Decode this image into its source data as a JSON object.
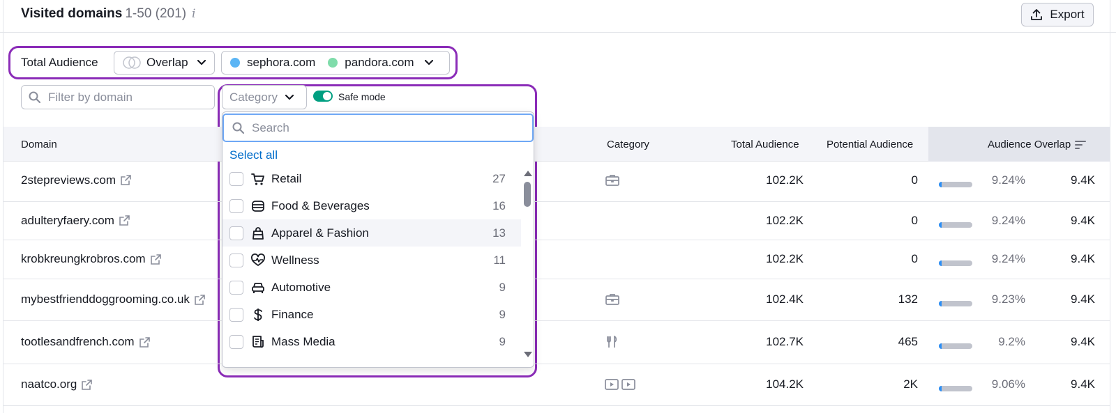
{
  "header": {
    "title": "Visited domains",
    "range": "1-50 (201)",
    "info_glyph": "i",
    "export_label": "Export"
  },
  "filters": {
    "total_audience_label": "Total Audience",
    "overlap_label": "Overlap",
    "domain1": "sephora.com",
    "domain2": "pandora.com",
    "domain1_color": "#5bb5f5",
    "domain2_color": "#7fdcaa",
    "filter_placeholder": "Filter by domain",
    "category_label": "Category",
    "safe_mode_label": "Safe mode",
    "safe_mode_on": true
  },
  "dropdown": {
    "search_placeholder": "Search",
    "select_all": "Select all",
    "options": [
      {
        "label": "Retail",
        "count": "27",
        "icon": "cart-icon"
      },
      {
        "label": "Food & Beverages",
        "count": "16",
        "icon": "burger-icon"
      },
      {
        "label": "Apparel & Fashion",
        "count": "13",
        "icon": "bag-icon"
      },
      {
        "label": "Wellness",
        "count": "11",
        "icon": "heartbeat-icon"
      },
      {
        "label": "Automotive",
        "count": "9",
        "icon": "car-icon"
      },
      {
        "label": "Finance",
        "count": "9",
        "icon": "dollar-icon"
      },
      {
        "label": "Mass Media",
        "count": "9",
        "icon": "news-icon"
      }
    ]
  },
  "table": {
    "columns": {
      "domain": "Domain",
      "category": "Category",
      "total": "Total Audience",
      "potential": "Potential Audience",
      "overlap": "Audience Overlap"
    },
    "rows": [
      {
        "domain": "2stepreviews.com",
        "category_icon": "briefcase-icon",
        "total": "102.2K",
        "potential": "0",
        "overlap_pct": "9.24%",
        "overlap_fill": 0.0924,
        "overlap": "9.4K"
      },
      {
        "domain": "adulteryfaery.com",
        "category_icon": "",
        "total": "102.2K",
        "potential": "0",
        "overlap_pct": "9.24%",
        "overlap_fill": 0.0924,
        "overlap": "9.4K"
      },
      {
        "domain": "krobkreungkrobros.com",
        "category_icon": "",
        "total": "102.2K",
        "potential": "0",
        "overlap_pct": "9.24%",
        "overlap_fill": 0.0924,
        "overlap": "9.4K"
      },
      {
        "domain": "mybestfrienddoggrooming.co.uk",
        "category_icon": "briefcase-icon",
        "total": "102.4K",
        "potential": "132",
        "overlap_pct": "9.23%",
        "overlap_fill": 0.0923,
        "overlap": "9.4K"
      },
      {
        "domain": "tootlesandfrench.com",
        "category_icon": "fork-knife-icon",
        "total": "102.7K",
        "potential": "465",
        "overlap_pct": "9.2%",
        "overlap_fill": 0.092,
        "overlap": "9.4K"
      },
      {
        "domain": "naatco.org",
        "category_icon": "play-icon",
        "total": "104.2K",
        "potential": "2K",
        "overlap_pct": "9.06%",
        "overlap_fill": 0.0906,
        "overlap": "9.4K"
      }
    ]
  }
}
